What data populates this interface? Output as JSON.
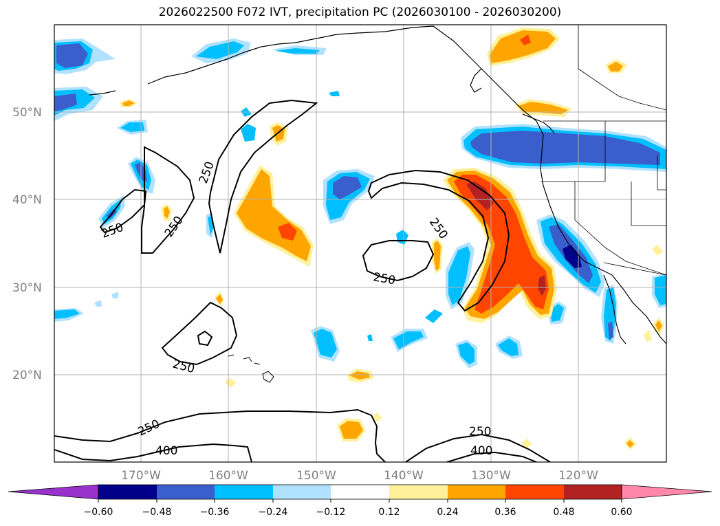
{
  "title": "2026022500 F072 IVT, precipitation PC (2026030100 - 2026030200)",
  "colors": {
    "neg_060": "#9932cc",
    "neg_048": "#00008b",
    "neg_036": "#3a5fcd",
    "neg_024": "#00bfff",
    "neg_012": "#b0e2ff",
    "zero": "#ffffff",
    "pos_012": "#fff09a",
    "pos_024": "#ffa500",
    "pos_036": "#ff4500",
    "pos_048": "#b22222",
    "pos_060": "#ff88aa",
    "grid": "#b0b0b0",
    "coast": "#000000",
    "contour": "#000000"
  },
  "latitude_labels": [
    "50°N",
    "40°N",
    "30°N",
    "20°N"
  ],
  "longitude_labels": [
    "170°W",
    "160°W",
    "150°W",
    "140°W",
    "130°W",
    "120°W"
  ],
  "contour_labels": [
    {
      "value": "250",
      "name": "contour-label-250-a"
    },
    {
      "value": "250",
      "name": "contour-label-250-b"
    },
    {
      "value": "250",
      "name": "contour-label-250-c"
    },
    {
      "value": "250",
      "name": "contour-label-250-d"
    },
    {
      "value": "250",
      "name": "contour-label-250-e"
    },
    {
      "value": "250",
      "name": "contour-label-250-f"
    },
    {
      "value": "250",
      "name": "contour-label-250-g"
    },
    {
      "value": "250",
      "name": "contour-label-250-h"
    },
    {
      "value": "400",
      "name": "contour-label-400-a"
    },
    {
      "value": "400",
      "name": "contour-label-400-b"
    }
  ],
  "colorbar": {
    "ticks": [
      "−0.60",
      "−0.48",
      "−0.36",
      "−0.24",
      "−0.12",
      "0.12",
      "0.24",
      "0.36",
      "0.48",
      "0.60"
    ]
  }
}
